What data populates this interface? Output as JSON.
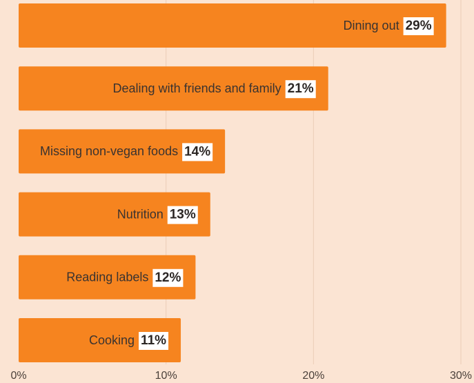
{
  "chart_data": {
    "type": "bar",
    "orientation": "horizontal",
    "categories": [
      "Dining out",
      "Dealing with friends and family",
      "Missing non-vegan foods",
      "Nutrition",
      "Reading labels",
      "Cooking"
    ],
    "values": [
      29,
      21,
      14,
      13,
      12,
      11
    ],
    "value_labels": [
      "29%",
      "21%",
      "14%",
      "13%",
      "12%",
      "11%"
    ],
    "color": "#f6841f",
    "xlim": [
      0,
      30
    ],
    "xticks": [
      {
        "value": 0,
        "label": "0%"
      },
      {
        "value": 10,
        "label": "10%"
      },
      {
        "value": 20,
        "label": "20%"
      },
      {
        "value": 30,
        "label": "30%"
      }
    ],
    "grid": true
  }
}
